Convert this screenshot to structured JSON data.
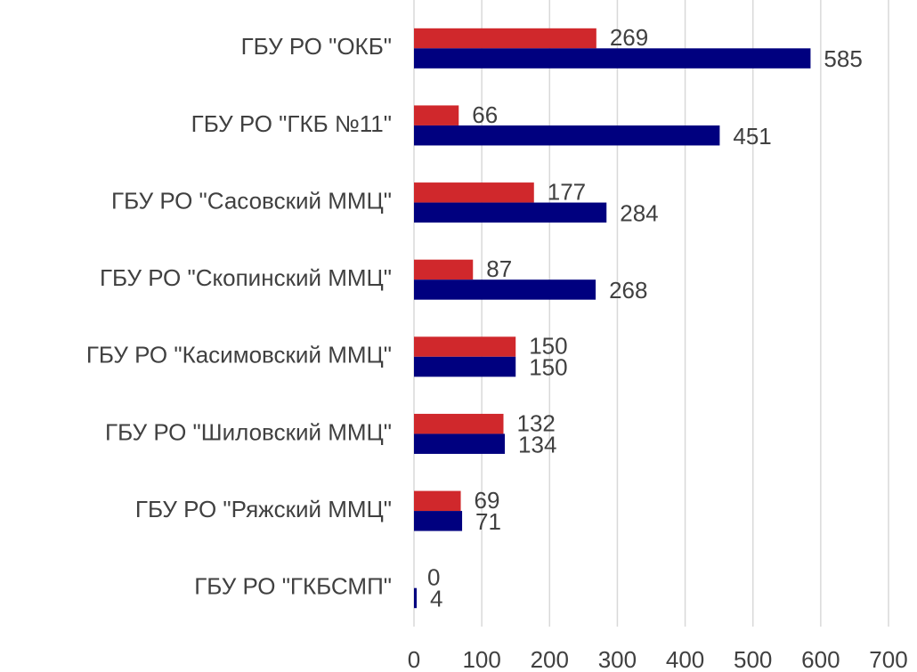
{
  "chart_data": {
    "type": "bar",
    "orientation": "horizontal",
    "categories": [
      "ГБУ РО \"ОКБ\"",
      "ГБУ РО \"ГКБ №11\"",
      "ГБУ РО \"Сасовский ММЦ\"",
      "ГБУ РО \"Скопинский ММЦ\"",
      "ГБУ РО \"Касимовский ММЦ\"",
      "ГБУ РО \"Шиловский ММЦ\"",
      "ГБУ РО \"Ряжский ММЦ\"",
      "ГБУ РО \"ГКБСМП\""
    ],
    "series": [
      {
        "color": "#d0282c",
        "values": [
          269,
          66,
          177,
          87,
          150,
          132,
          69,
          0
        ]
      },
      {
        "color": "#00007f",
        "values": [
          585,
          451,
          284,
          268,
          150,
          134,
          71,
          4
        ]
      }
    ],
    "xlim": [
      0,
      700
    ],
    "xticks": [
      0,
      100,
      200,
      300,
      400,
      500,
      600,
      700
    ],
    "grid": true
  }
}
